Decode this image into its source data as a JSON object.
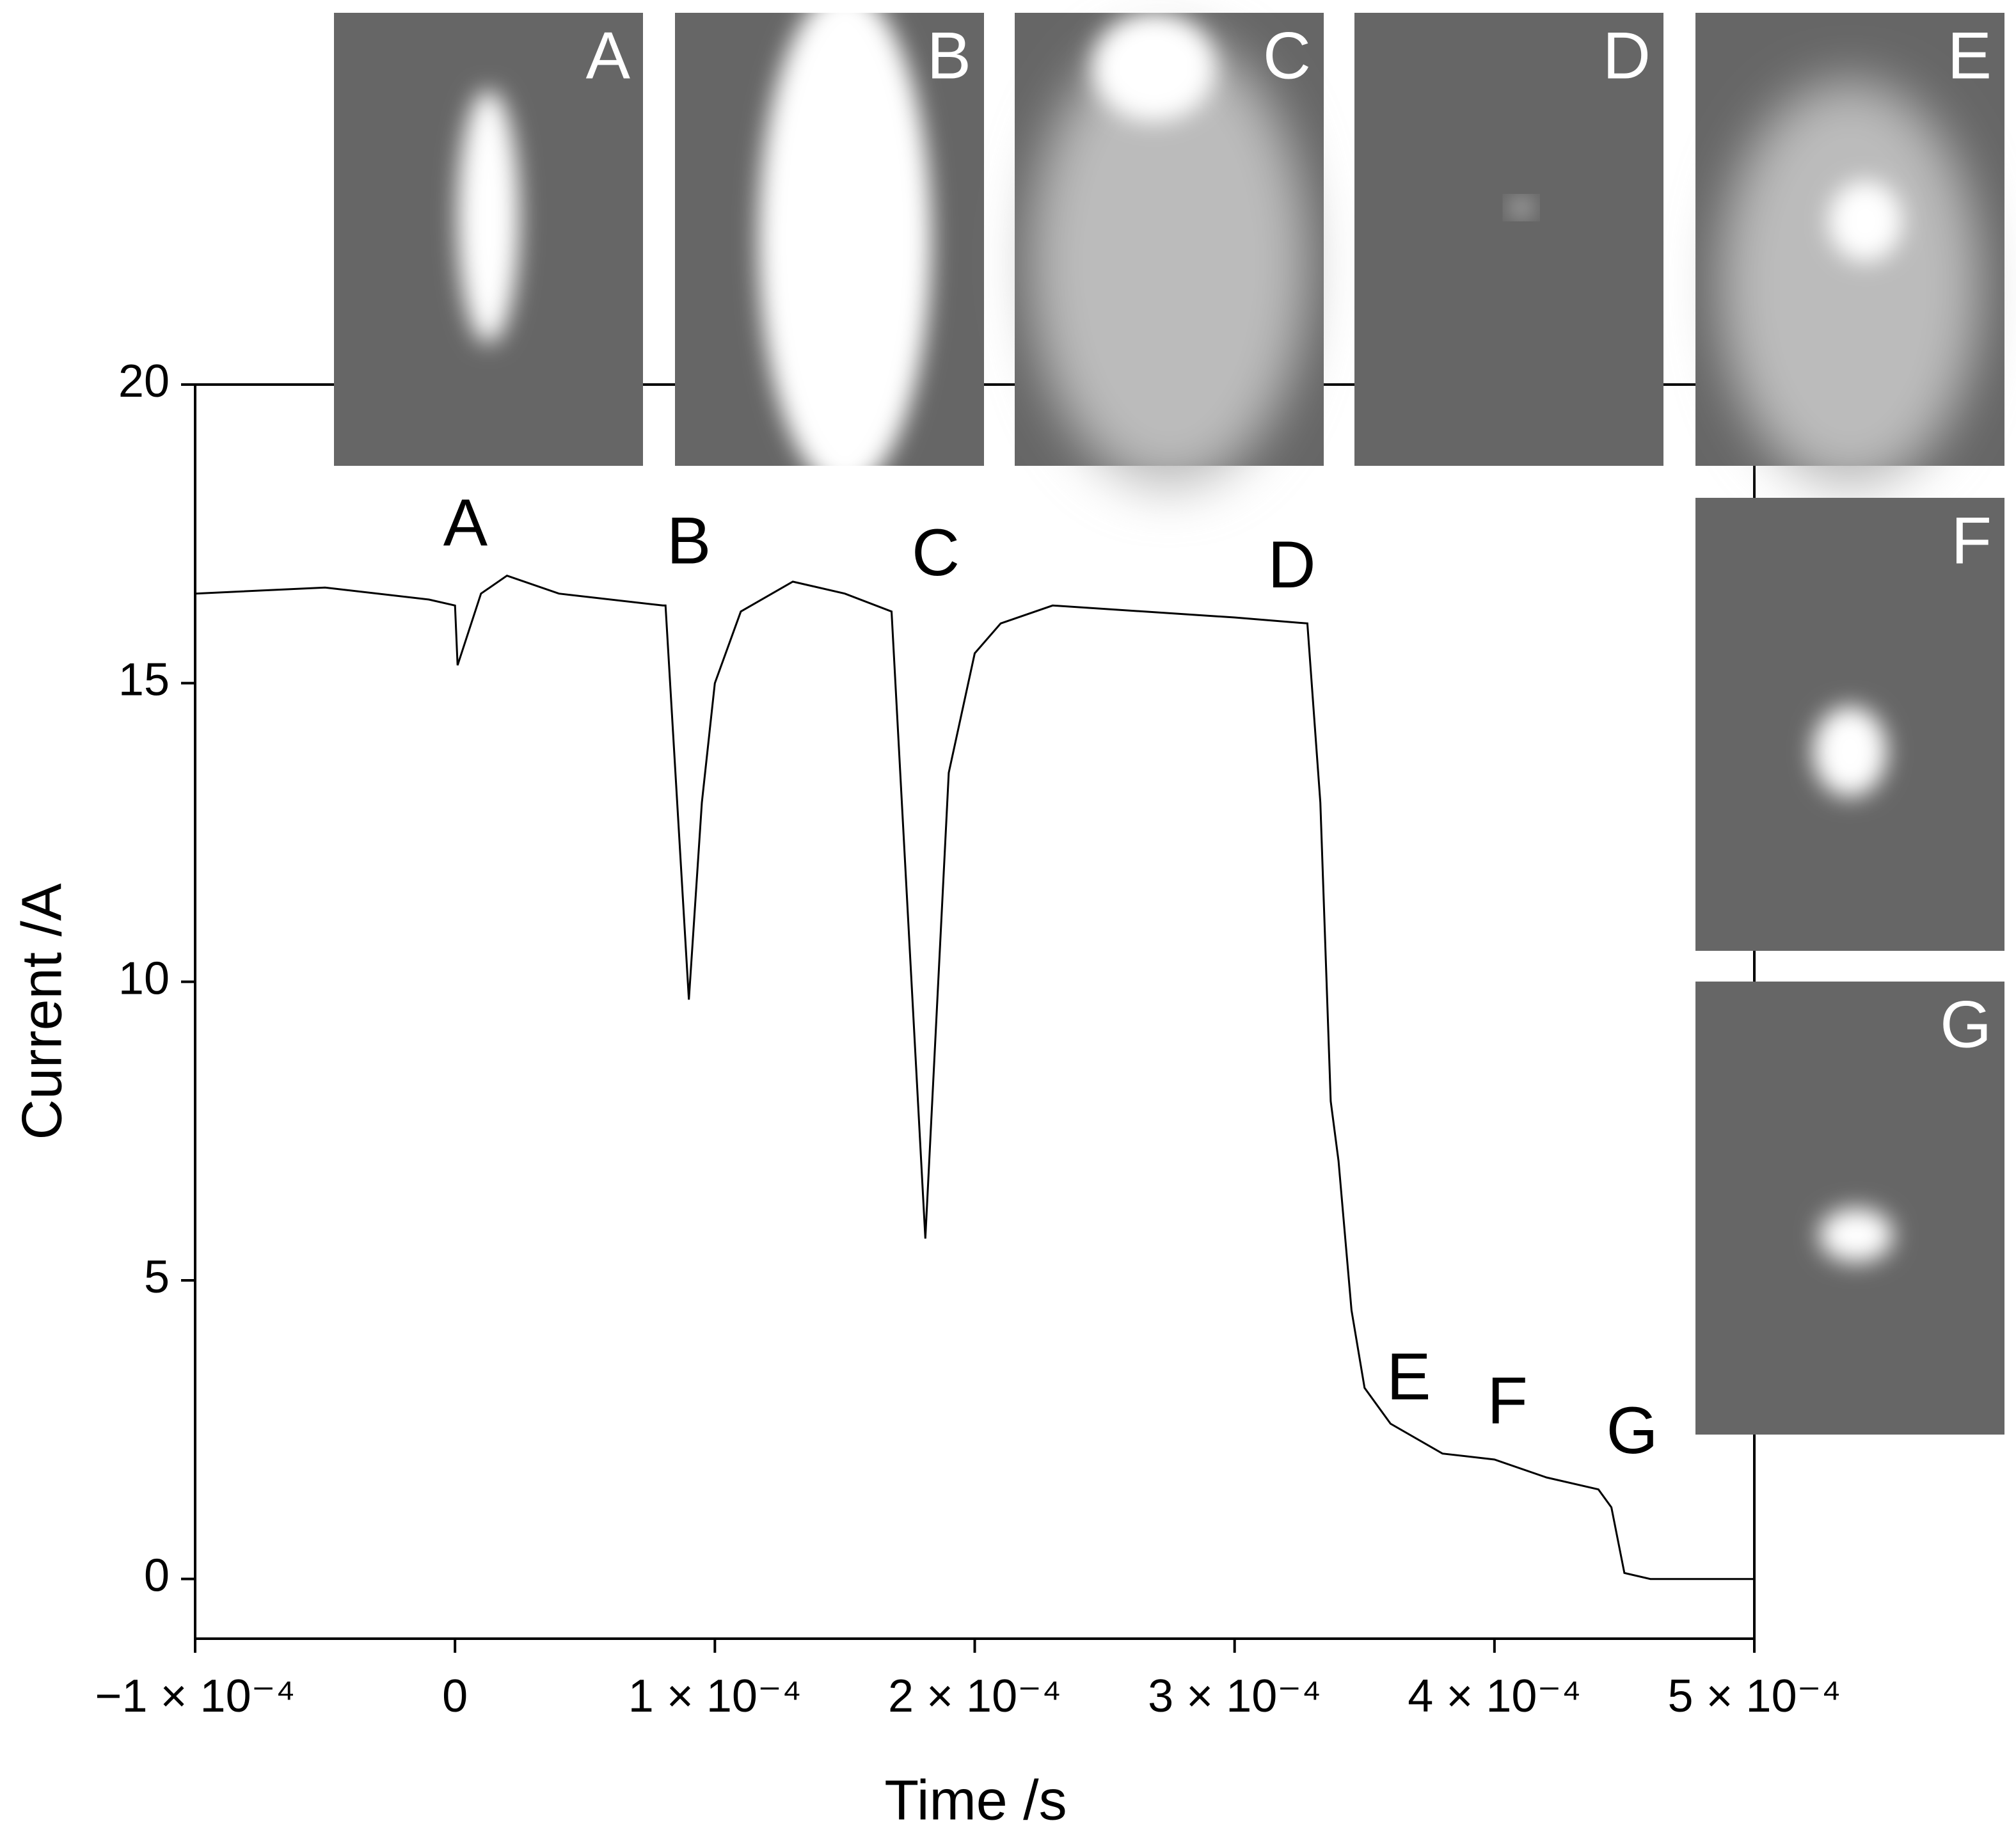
{
  "chart_data": {
    "type": "line",
    "xlabel": "Time /s",
    "ylabel": "Current /A",
    "x": [
      -0.0001,
      -5e-05,
      -1e-05,
      0,
      1e-06,
      1e-05,
      2e-05,
      4e-05,
      8e-05,
      8.1e-05,
      9e-05,
      9.5e-05,
      0.0001,
      0.00011,
      0.00013,
      0.00015,
      0.000168,
      0.000181,
      0.00019,
      0.0002,
      0.00021,
      0.00023,
      0.0003,
      0.000328,
      0.000333,
      0.000337,
      0.00034,
      0.000345,
      0.00035,
      0.00036,
      0.00038,
      0.0004,
      0.00042,
      0.00044,
      0.000445,
      0.00045,
      0.00046,
      0.0005
    ],
    "values": [
      16.5,
      16.6,
      16.4,
      16.3,
      15.3,
      16.5,
      16.8,
      16.5,
      16.3,
      16.3,
      9.7,
      13,
      15,
      16.2,
      16.7,
      16.5,
      16.2,
      5.7,
      13.5,
      15.5,
      16.0,
      16.3,
      16.1,
      16.0,
      13,
      8,
      7,
      4.5,
      3.2,
      2.6,
      2.1,
      2.0,
      1.7,
      1.5,
      1.2,
      0.1,
      0,
      0
    ],
    "color": "#000000",
    "xlim": [
      -0.0001,
      0.0005
    ],
    "xticks": [
      {
        "value": -0.0001,
        "label": "−1 × 10⁻⁴"
      },
      0,
      {
        "value": 0.0001,
        "label": "1 × 10⁻⁴"
      },
      {
        "value": 0.0002,
        "label": "2 × 10⁻⁴"
      },
      {
        "value": 0.0003,
        "label": "3 × 10⁻⁴"
      },
      {
        "value": 0.0004,
        "label": "4 × 10⁻⁴"
      },
      {
        "value": 0.0005,
        "label": "5 × 10⁻⁴"
      }
    ],
    "ylim": [
      -1,
      20
    ],
    "yticks": [
      0,
      5,
      10,
      15,
      20
    ],
    "annotations": [
      {
        "text": "A",
        "x": 4e-06,
        "y": 17.6
      },
      {
        "text": "B",
        "x": 9e-05,
        "y": 17.3
      },
      {
        "text": "C",
        "x": 0.000185,
        "y": 17.1
      },
      {
        "text": "D",
        "x": 0.000322,
        "y": 16.9
      },
      {
        "text": "E",
        "x": 0.000367,
        "y": 3.3
      },
      {
        "text": "F",
        "x": 0.000405,
        "y": 2.9
      },
      {
        "text": "G",
        "x": 0.000453,
        "y": 2.4
      }
    ],
    "insets": [
      "A",
      "B",
      "C",
      "D",
      "E",
      "F",
      "G"
    ]
  }
}
